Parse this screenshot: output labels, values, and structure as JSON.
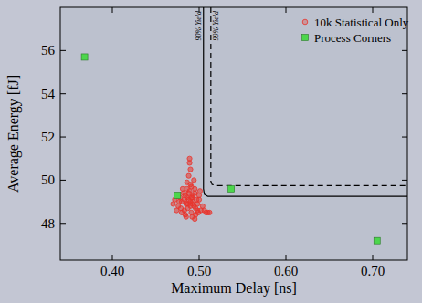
{
  "chart_data": {
    "type": "scatter",
    "xlabel": "Maximum Delay [ns]",
    "ylabel": "Average Energy [fJ]",
    "xlim": [
      0.34,
      0.74
    ],
    "xticks": [
      {
        "value": 0.4,
        "label": "0.40"
      },
      {
        "value": 0.5,
        "label": "0.50"
      },
      {
        "value": 0.6,
        "label": "0.60"
      },
      {
        "value": 0.7,
        "label": "0.70"
      }
    ],
    "ylim": [
      46.3,
      58.0
    ],
    "yticks": [
      48,
      50,
      52,
      54,
      56
    ],
    "grid": false,
    "legend": "upper right",
    "series": [
      {
        "name": "10k Statistical Only",
        "type": "scatter",
        "color": "#e8342c",
        "marker": "circle",
        "x": [
          0.49,
          0.488,
          0.492,
          0.486,
          0.494,
          0.484,
          0.496,
          0.482,
          0.498,
          0.48,
          0.5,
          0.478,
          0.502,
          0.476,
          0.504,
          0.489,
          0.491,
          0.487,
          0.493,
          0.485,
          0.495,
          0.483,
          0.497,
          0.481,
          0.499,
          0.479,
          0.501,
          0.477,
          0.49,
          0.488,
          0.492,
          0.486,
          0.494,
          0.484,
          0.496,
          0.49,
          0.489,
          0.491,
          0.495,
          0.485,
          0.474,
          0.506,
          0.472,
          0.508,
          0.49,
          0.487,
          0.493,
          0.483,
          0.498,
          0.51,
          0.47,
          0.491,
          0.489,
          0.495,
          0.486,
          0.512,
          0.48,
          0.5,
          0.492,
          0.488
        ],
        "values": [
          49.0,
          49.1,
          48.9,
          49.2,
          48.8,
          49.3,
          48.7,
          49.4,
          48.9,
          49.0,
          49.1,
          49.2,
          48.6,
          48.8,
          48.8,
          49.5,
          48.5,
          48.7,
          49.3,
          48.9,
          49.4,
          48.6,
          49.1,
          49.6,
          48.5,
          48.7,
          49.5,
          49.0,
          49.8,
          50.2,
          48.3,
          49.9,
          50.0,
          48.4,
          48.4,
          50.5,
          51.0,
          49.7,
          48.2,
          48.3,
          48.6,
          48.6,
          49.1,
          48.5,
          48.8,
          48.9,
          49.0,
          49.1,
          48.6,
          48.5,
          48.9,
          49.2,
          50.8,
          49.6,
          49.6,
          48.5,
          48.5,
          49.3,
          49.2,
          49.4
        ]
      },
      {
        "name": "Process Corners",
        "type": "scatter",
        "color": "#4cd64c",
        "marker": "square",
        "x": [
          0.368,
          0.475,
          0.537,
          0.705
        ],
        "values": [
          55.7,
          49.3,
          49.6,
          47.2
        ]
      },
      {
        "name": "90% Yield",
        "type": "line",
        "color": "#000000",
        "line_style": "solid",
        "x": [
          0.505,
          0.505,
          0.506,
          0.51,
          0.74
        ],
        "values": [
          58.0,
          49.6,
          49.35,
          49.25,
          49.25
        ]
      },
      {
        "name": "99% Yield",
        "type": "line",
        "color": "#000000",
        "line_style": "dashed",
        "x": [
          0.5135,
          0.5135,
          0.515,
          0.52,
          0.74
        ],
        "values": [
          58.0,
          49.95,
          49.8,
          49.75,
          49.75
        ]
      }
    ]
  }
}
